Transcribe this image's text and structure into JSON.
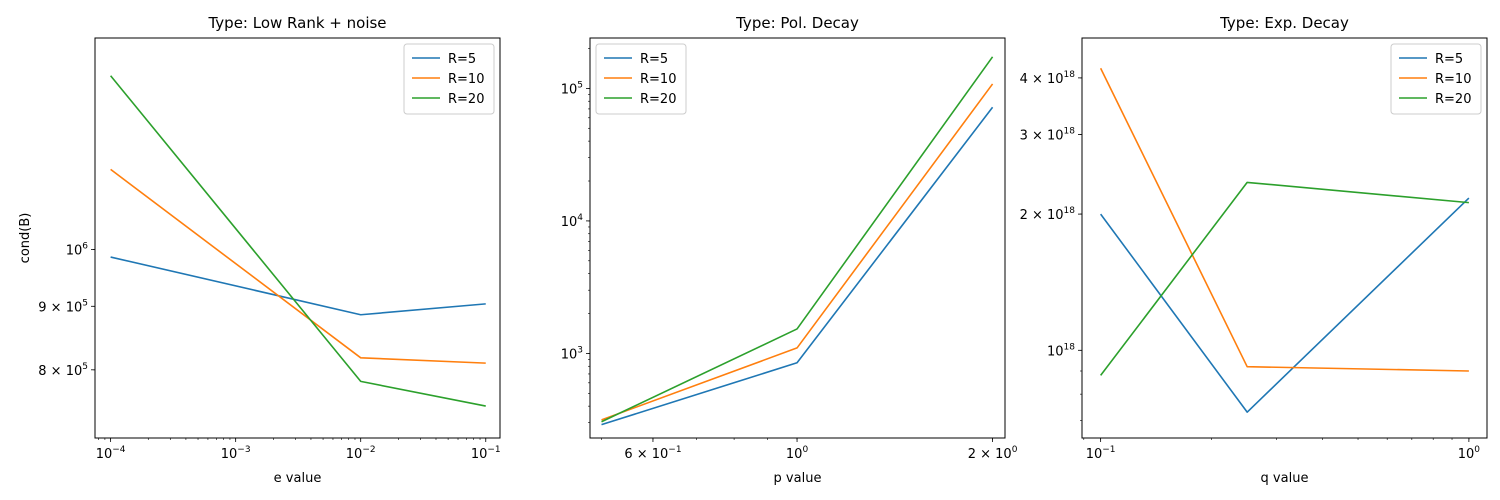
{
  "figure": {
    "colors": {
      "R=5": "#1f77b4",
      "R=10": "#ff7f0e",
      "R=20": "#2ca02c"
    }
  },
  "chart_data": [
    {
      "type": "line",
      "title": "Type: Low Rank + noise",
      "xlabel": "e value",
      "ylabel": "cond(B)",
      "xscale": "log",
      "yscale": "log",
      "xlim": [
        7.5e-05,
        0.13
      ],
      "ylim": [
        705000,
        1480000
      ],
      "xticks": [
        {
          "value": 0.0001,
          "base": "10",
          "exp": "−4"
        },
        {
          "value": 0.001,
          "base": "10",
          "exp": "−3"
        },
        {
          "value": 0.01,
          "base": "10",
          "exp": "−2"
        },
        {
          "value": 0.1,
          "base": "10",
          "exp": "−1"
        }
      ],
      "yticks": [
        {
          "value": 1000000,
          "base": "10",
          "exp": "6"
        },
        {
          "value": 900000,
          "base": "9 × 10",
          "exp": "5"
        },
        {
          "value": 800000,
          "base": "8 × 10",
          "exp": "5"
        }
      ],
      "x": [
        0.0001,
        0.01,
        0.1
      ],
      "series": [
        {
          "name": "R=5",
          "values": [
            986000,
            886000,
            904000
          ]
        },
        {
          "name": "R=10",
          "values": [
            1160000,
            818000,
            810000
          ]
        },
        {
          "name": "R=20",
          "values": [
            1380000,
            783000,
            748000
          ]
        }
      ],
      "legend": "top-right",
      "grid": false
    },
    {
      "type": "line",
      "title": "Type: Pol. Decay",
      "xlabel": "p value",
      "ylabel": "",
      "xscale": "log",
      "yscale": "log",
      "xlim": [
        0.48,
        2.09
      ],
      "ylim": [
        230,
        240000
      ],
      "xticks": [
        {
          "value": 0.6,
          "base": "6 × 10",
          "exp": "−1"
        },
        {
          "value": 1,
          "base": "10",
          "exp": "0"
        },
        {
          "value": 2,
          "base": "2 × 10",
          "exp": "0"
        }
      ],
      "yticks": [
        {
          "value": 1000,
          "base": "10",
          "exp": "3"
        },
        {
          "value": 10000,
          "base": "10",
          "exp": "4"
        },
        {
          "value": 100000,
          "base": "10",
          "exp": "5"
        }
      ],
      "x": [
        0.5,
        1,
        2
      ],
      "series": [
        {
          "name": "R=5",
          "values": [
            290,
            850,
            72000
          ]
        },
        {
          "name": "R=10",
          "values": [
            315,
            1100,
            108000
          ]
        },
        {
          "name": "R=20",
          "values": [
            305,
            1530,
            173000
          ]
        }
      ],
      "legend": "top-left",
      "grid": false
    },
    {
      "type": "line",
      "title": "Type: Exp. Decay",
      "xlabel": "q value",
      "ylabel": "",
      "xscale": "log",
      "yscale": "log",
      "xlim": [
        0.089,
        1.12
      ],
      "ylim": [
        6.4e+17,
        4.9e+18
      ],
      "xticks": [
        {
          "value": 0.1,
          "base": "10",
          "exp": "−1"
        },
        {
          "value": 1,
          "base": "10",
          "exp": "0"
        }
      ],
      "yticks": [
        {
          "value": 4e+18,
          "base": "4 × 10",
          "exp": "18"
        },
        {
          "value": 3e+18,
          "base": "3 × 10",
          "exp": "18"
        },
        {
          "value": 2e+18,
          "base": "2 × 10",
          "exp": "18"
        },
        {
          "value": 1e+18,
          "base": "10",
          "exp": "18"
        }
      ],
      "x": [
        0.1,
        0.25,
        1
      ],
      "series": [
        {
          "name": "R=5",
          "values": [
            2e+18,
            7.3e+17,
            2.17e+18
          ]
        },
        {
          "name": "R=10",
          "values": [
            4.2e+18,
            9.2e+17,
            9e+17
          ]
        },
        {
          "name": "R=20",
          "values": [
            8.8e+17,
            2.35e+18,
            2.12e+18
          ]
        }
      ],
      "legend": "top-right",
      "grid": false
    }
  ]
}
